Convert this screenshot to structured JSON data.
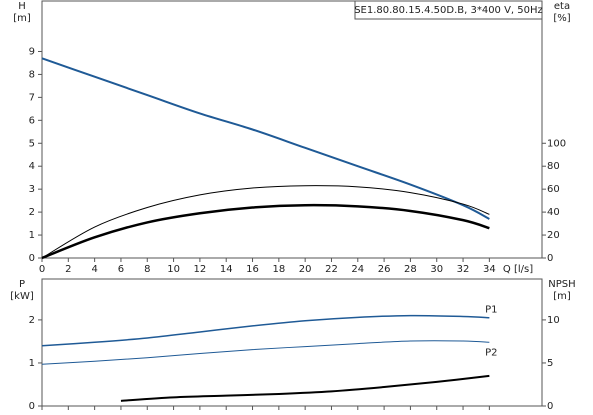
{
  "chart_data": [
    {
      "type": "line",
      "title": "SE1.80.80.15.4.50D.B, 3*400 V, 50Hz",
      "xlabel": "Q [l/s]",
      "ylabel": "H",
      "yunit": "[m]",
      "y2label": "eta",
      "y2unit": "[%]",
      "x": [
        0,
        4,
        8,
        12,
        16,
        20,
        24,
        28,
        32,
        34
      ],
      "xlim": [
        0,
        38
      ],
      "xticks": [
        0,
        2,
        4,
        6,
        8,
        10,
        12,
        14,
        16,
        18,
        20,
        22,
        24,
        26,
        28,
        30,
        32,
        34
      ],
      "ylim": [
        0,
        11.2
      ],
      "yticks": [
        0,
        1,
        2,
        3,
        4,
        5,
        6,
        7,
        8,
        9
      ],
      "y2lim": [
        0,
        224
      ],
      "y2ticks": [
        0,
        20,
        40,
        60,
        80,
        100
      ],
      "series": [
        {
          "color": "#1f5a96",
          "line_width": 2,
          "values": [
            8.7,
            7.9,
            7.1,
            6.3,
            5.6,
            4.8,
            4.0,
            3.2,
            2.3,
            1.7
          ]
        },
        {
          "color": "#000000",
          "line_width": 1,
          "axis": "y2",
          "values": [
            0,
            27,
            44,
            55,
            61,
            63,
            62,
            57,
            47,
            38
          ]
        },
        {
          "color": "#000000",
          "line_width": 2.5,
          "axis": "y2",
          "values": [
            0,
            18,
            31,
            39,
            44,
            46,
            45,
            41,
            33,
            26
          ]
        }
      ]
    },
    {
      "type": "line",
      "ylabel": "P",
      "yunit": "[kW]",
      "y2label": "NPSH",
      "y2unit": "[m]",
      "x": [
        0,
        4,
        8,
        12,
        16,
        20,
        24,
        28,
        32,
        34
      ],
      "xlim": [
        0,
        38
      ],
      "xticks": [
        0,
        2,
        4,
        6,
        8,
        10,
        12,
        14,
        16,
        18,
        20,
        22,
        24,
        26,
        28,
        30,
        32,
        34
      ],
      "ylim": [
        0,
        2.95
      ],
      "yticks": [
        0,
        1,
        2
      ],
      "y2lim": [
        0,
        14.75
      ],
      "y2ticks": [
        0,
        5,
        10
      ],
      "series": [
        {
          "name": "P1",
          "color": "#1f5a96",
          "line_width": 1.5,
          "values": [
            1.4,
            1.48,
            1.58,
            1.72,
            1.86,
            1.98,
            2.06,
            2.1,
            2.08,
            2.05
          ]
        },
        {
          "name": "P2",
          "color": "#1f5a96",
          "line_width": 1,
          "values": [
            0.97,
            1.04,
            1.12,
            1.22,
            1.31,
            1.38,
            1.45,
            1.51,
            1.51,
            1.48
          ]
        },
        {
          "color": "#000000",
          "line_width": 2,
          "axis": "y2",
          "x": [
            6,
            10,
            14,
            18,
            22,
            26,
            30,
            34
          ],
          "values": [
            0.6,
            1.0,
            1.2,
            1.4,
            1.7,
            2.2,
            2.8,
            3.5
          ]
        }
      ]
    }
  ]
}
